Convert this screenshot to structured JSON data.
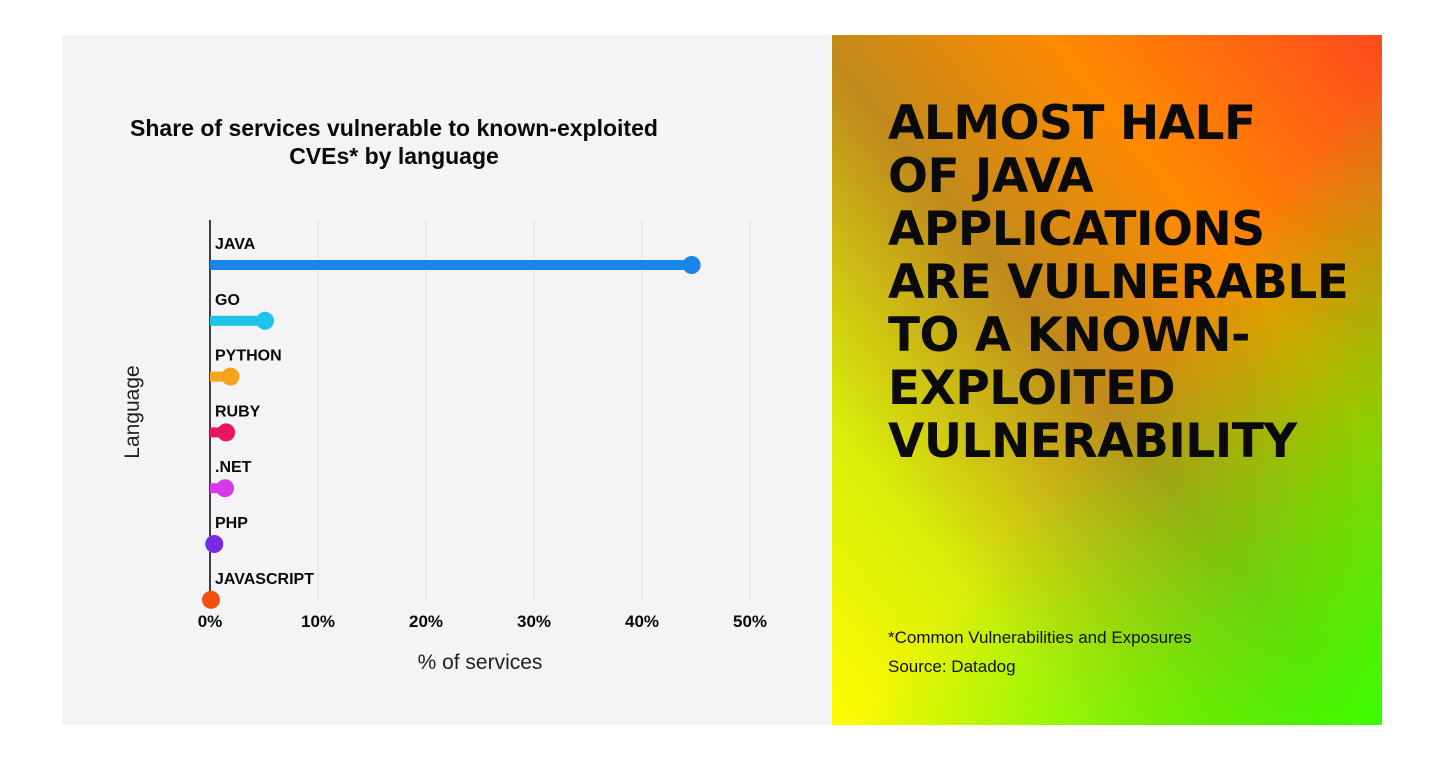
{
  "chart_data": {
    "type": "bar",
    "title": "Share of services vulnerable to known-exploited CVEs* by language",
    "title_lines": [
      "Share of services vulnerable to known-exploited",
      "CVEs* by language"
    ],
    "xlabel": "% of services",
    "ylabel": "Language",
    "orientation": "horizontal",
    "categories": [
      "JAVA",
      "GO",
      "PYTHON",
      "RUBY",
      ".NET",
      "PHP",
      "JAVASCRIPT"
    ],
    "values": [
      44.5,
      5.0,
      1.8,
      1.4,
      1.3,
      0.3,
      0.0
    ],
    "colors": [
      "#1a85e8",
      "#1ec3ea",
      "#f5a21c",
      "#eb1460",
      "#d63ae8",
      "#7a2ae8",
      "#f2500f"
    ],
    "xlim": [
      0,
      50
    ],
    "xticks": [
      0,
      10,
      20,
      30,
      40,
      50
    ],
    "xtick_labels": [
      "0%",
      "10%",
      "20%",
      "30%",
      "40%",
      "50%"
    ],
    "grid": "vertical"
  },
  "headline": {
    "lines": [
      "ALMOST HALF",
      "OF JAVA",
      "APPLICATIONS",
      "ARE VULNERABLE",
      "TO A KNOWN-",
      "EXPLOITED",
      "VULNERABILITY"
    ]
  },
  "footnote": {
    "definition": "*Common Vulnerabilities and Exposures",
    "source": "Source: Datadog"
  },
  "colors": {
    "chart_background": "#f4f4f6",
    "text": "#0a0a0a",
    "grid": "#e0e0e4"
  }
}
